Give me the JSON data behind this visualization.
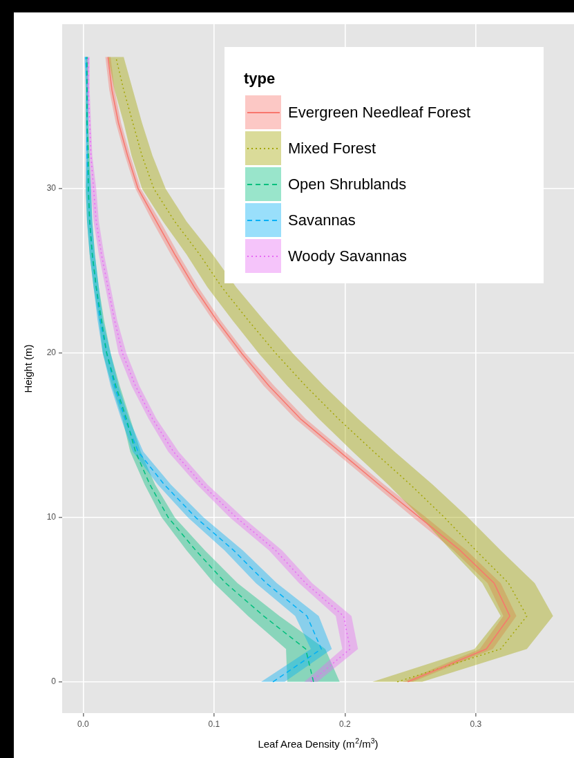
{
  "chart_data": {
    "type": "line",
    "orientation": "horizontal",
    "xlabel": "Leaf Area Density (m$^{2}$/m$^{3}$)",
    "ylabel": "Height (m)",
    "legend_title": "type",
    "xlim": [
      -0.016,
      0.375
    ],
    "ylim": [
      -1.9,
      40
    ],
    "xticks": [
      {
        "value": 0,
        "label": "0.0"
      },
      0.1,
      0.2,
      0.3
    ],
    "yticks": [
      0,
      10,
      20,
      30
    ],
    "grid": true,
    "legend": "top right",
    "series": [
      {
        "name": "Evergreen Needleaf Forest",
        "color": "#f8766d",
        "line_style": "solid",
        "x": [
          0,
          2,
          4,
          6,
          8,
          10,
          12,
          14,
          16,
          18,
          20,
          22,
          24,
          26,
          28,
          30,
          32,
          34,
          36,
          38
        ],
        "values": [
          0.248,
          0.308,
          0.326,
          0.314,
          0.288,
          0.257,
          0.226,
          0.196,
          0.166,
          0.142,
          0.121,
          0.102,
          0.085,
          0.07,
          0.056,
          0.042,
          0.034,
          0.027,
          0.022,
          0.019
        ],
        "lower": [
          0.244,
          0.303,
          0.321,
          0.309,
          0.283,
          0.252,
          0.222,
          0.192,
          0.162,
          0.138,
          0.118,
          0.099,
          0.082,
          0.067,
          0.053,
          0.04,
          0.032,
          0.025,
          0.02,
          0.017
        ],
        "upper": [
          0.252,
          0.313,
          0.331,
          0.319,
          0.293,
          0.262,
          0.23,
          0.2,
          0.17,
          0.146,
          0.124,
          0.105,
          0.088,
          0.073,
          0.059,
          0.044,
          0.036,
          0.029,
          0.024,
          0.021
        ]
      },
      {
        "name": "Mixed Forest",
        "color": "#a3a500",
        "line_style": "dotted",
        "x": [
          0,
          2,
          4,
          6,
          8,
          10,
          12,
          14,
          16,
          18,
          20,
          22,
          24,
          26,
          28,
          30,
          32,
          34,
          36,
          38
        ],
        "values": [
          0.24,
          0.319,
          0.339,
          0.325,
          0.3,
          0.276,
          0.25,
          0.222,
          0.195,
          0.17,
          0.147,
          0.126,
          0.106,
          0.089,
          0.07,
          0.054,
          0.045,
          0.038,
          0.031,
          0.025
        ],
        "lower": [
          0.221,
          0.299,
          0.319,
          0.305,
          0.281,
          0.258,
          0.233,
          0.206,
          0.18,
          0.156,
          0.134,
          0.114,
          0.095,
          0.079,
          0.061,
          0.045,
          0.037,
          0.031,
          0.024,
          0.019
        ],
        "upper": [
          0.259,
          0.339,
          0.359,
          0.345,
          0.319,
          0.294,
          0.267,
          0.238,
          0.21,
          0.184,
          0.16,
          0.138,
          0.117,
          0.099,
          0.079,
          0.063,
          0.053,
          0.045,
          0.038,
          0.031
        ]
      },
      {
        "name": "Open Shrublands",
        "color": "#00bf7d",
        "line_style": "dashed",
        "x": [
          0,
          2,
          4,
          6,
          8,
          10,
          12,
          14,
          16,
          18,
          20,
          22,
          24,
          26,
          28,
          30,
          32,
          34,
          36,
          38
        ],
        "values": [
          0.176,
          0.17,
          0.138,
          0.109,
          0.086,
          0.065,
          0.051,
          0.04,
          0.033,
          0.025,
          0.018,
          0.014,
          0.01,
          0.007,
          0.005,
          0.004,
          0.004,
          0.003,
          0.003,
          0.003
        ],
        "lower": [
          0.156,
          0.155,
          0.126,
          0.1,
          0.079,
          0.06,
          0.047,
          0.036,
          0.03,
          0.022,
          0.015,
          0.012,
          0.008,
          0.005,
          0.003,
          0.002,
          0.003,
          0.002,
          0.002,
          0.002
        ],
        "upper": [
          0.196,
          0.185,
          0.15,
          0.118,
          0.093,
          0.07,
          0.055,
          0.044,
          0.036,
          0.028,
          0.021,
          0.016,
          0.012,
          0.009,
          0.007,
          0.006,
          0.005,
          0.004,
          0.004,
          0.004
        ]
      },
      {
        "name": "Savannas",
        "color": "#00b0f6",
        "line_style": "dashed",
        "x": [
          0,
          2,
          4,
          6,
          8,
          10,
          12,
          14,
          16,
          18,
          20,
          22,
          24,
          26,
          28,
          30,
          32,
          34,
          36,
          38
        ],
        "values": [
          0.145,
          0.182,
          0.171,
          0.14,
          0.115,
          0.086,
          0.062,
          0.042,
          0.032,
          0.024,
          0.018,
          0.013,
          0.01,
          0.007,
          0.005,
          0.004,
          0.003,
          0.003,
          0.003,
          0.002
        ],
        "lower": [
          0.136,
          0.174,
          0.162,
          0.132,
          0.108,
          0.08,
          0.057,
          0.038,
          0.029,
          0.021,
          0.015,
          0.011,
          0.008,
          0.005,
          0.003,
          0.002,
          0.002,
          0.002,
          0.002,
          0.001
        ],
        "upper": [
          0.154,
          0.19,
          0.18,
          0.148,
          0.122,
          0.092,
          0.067,
          0.046,
          0.035,
          0.027,
          0.021,
          0.015,
          0.012,
          0.009,
          0.007,
          0.006,
          0.004,
          0.004,
          0.004,
          0.003
        ]
      },
      {
        "name": "Woody Savannas",
        "color": "#e76bf3",
        "line_style": "dotted",
        "x": [
          0,
          2,
          4,
          6,
          8,
          10,
          12,
          14,
          16,
          18,
          20,
          22,
          24,
          26,
          28,
          30,
          32,
          34,
          36,
          38
        ],
        "values": [
          0.174,
          0.204,
          0.199,
          0.17,
          0.147,
          0.117,
          0.091,
          0.069,
          0.053,
          0.04,
          0.03,
          0.024,
          0.019,
          0.014,
          0.01,
          0.008,
          0.006,
          0.005,
          0.004,
          0.004
        ],
        "lower": [
          0.169,
          0.198,
          0.193,
          0.165,
          0.142,
          0.112,
          0.087,
          0.065,
          0.05,
          0.037,
          0.027,
          0.022,
          0.017,
          0.012,
          0.008,
          0.006,
          0.005,
          0.004,
          0.003,
          0.003
        ],
        "upper": [
          0.179,
          0.21,
          0.205,
          0.175,
          0.152,
          0.122,
          0.095,
          0.073,
          0.056,
          0.043,
          0.033,
          0.026,
          0.021,
          0.016,
          0.012,
          0.01,
          0.007,
          0.006,
          0.005,
          0.005
        ]
      }
    ]
  }
}
